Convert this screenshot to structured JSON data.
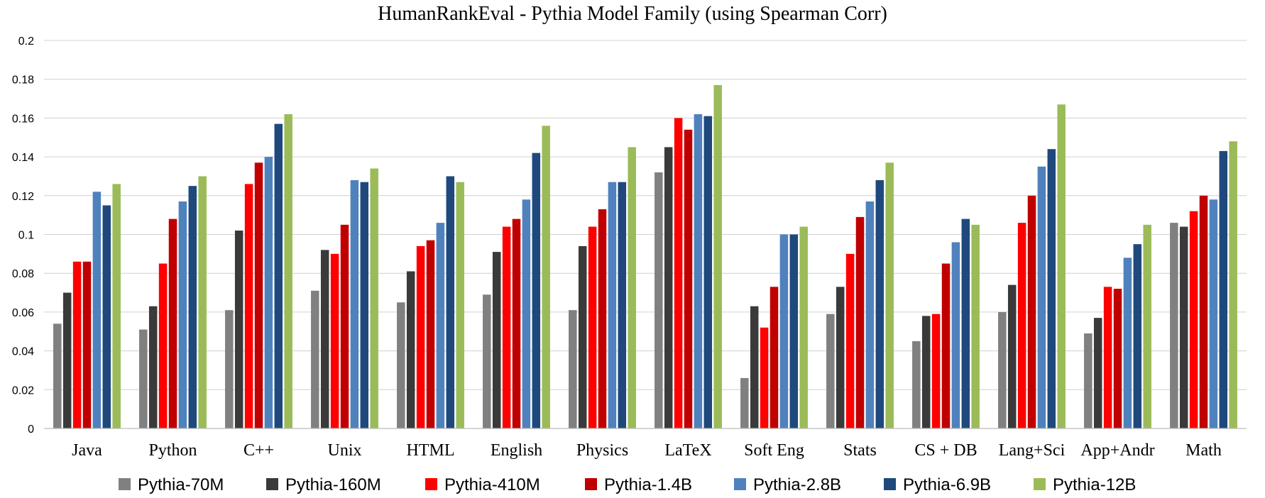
{
  "chart_data": {
    "type": "bar",
    "title": "HumanRankEval - Pythia Model Family (using Spearman Corr)",
    "xlabel": "",
    "ylabel": "",
    "ylim": [
      0,
      0.2
    ],
    "yticks": [
      "0",
      "0.02",
      "0.04",
      "0.06",
      "0.08",
      "0.1",
      "0.12",
      "0.14",
      "0.16",
      "0.18",
      "0.2"
    ],
    "grid": true,
    "legend_position": "bottom",
    "categories": [
      "Java",
      "Python",
      "C++",
      "Unix",
      "HTML",
      "English",
      "Physics",
      "LaTeX",
      "Soft Eng",
      "Stats",
      "CS + DB",
      "Lang+Sci",
      "App+Andr",
      "Math"
    ],
    "series": [
      {
        "name": "Pythia-70M",
        "color": "#808080",
        "values": [
          0.054,
          0.051,
          0.061,
          0.071,
          0.065,
          0.069,
          0.061,
          0.132,
          0.026,
          0.059,
          0.045,
          0.06,
          0.049,
          0.106
        ]
      },
      {
        "name": "Pythia-160M",
        "color": "#3a3a3a",
        "values": [
          0.07,
          0.063,
          0.102,
          0.092,
          0.081,
          0.091,
          0.094,
          0.145,
          0.063,
          0.073,
          0.058,
          0.074,
          0.057,
          0.104
        ]
      },
      {
        "name": "Pythia-410M",
        "color": "#ff0000",
        "values": [
          0.086,
          0.085,
          0.126,
          0.09,
          0.094,
          0.104,
          0.104,
          0.16,
          0.052,
          0.09,
          0.059,
          0.106,
          0.073,
          0.112
        ]
      },
      {
        "name": "Pythia-1.4B",
        "color": "#c00000",
        "values": [
          0.086,
          0.108,
          0.137,
          0.105,
          0.097,
          0.108,
          0.113,
          0.154,
          0.073,
          0.109,
          0.085,
          0.12,
          0.072,
          0.12
        ]
      },
      {
        "name": "Pythia-2.8B",
        "color": "#4f81bd",
        "values": [
          0.122,
          0.117,
          0.14,
          0.128,
          0.106,
          0.118,
          0.127,
          0.162,
          0.1,
          0.117,
          0.096,
          0.135,
          0.088,
          0.118
        ]
      },
      {
        "name": "Pythia-6.9B",
        "color": "#1f497d",
        "values": [
          0.115,
          0.125,
          0.157,
          0.127,
          0.13,
          0.142,
          0.127,
          0.161,
          0.1,
          0.128,
          0.108,
          0.144,
          0.095,
          0.143
        ]
      },
      {
        "name": "Pythia-12B",
        "color": "#9bbb59",
        "values": [
          0.126,
          0.13,
          0.162,
          0.134,
          0.127,
          0.156,
          0.145,
          0.177,
          0.104,
          0.137,
          0.105,
          0.167,
          0.105,
          0.148
        ]
      }
    ]
  }
}
